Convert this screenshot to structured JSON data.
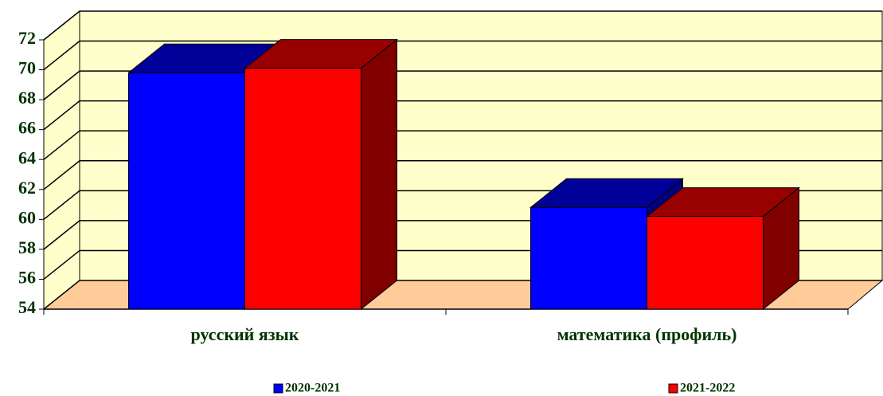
{
  "chart_data": {
    "type": "bar3d",
    "categories": [
      "русский язык",
      "математика (профиль)"
    ],
    "series": [
      {
        "name": "2020-2021",
        "color": "#0000ff",
        "values": [
          69.8,
          60.8
        ]
      },
      {
        "name": "2021-2022",
        "color": "#ff0000",
        "values": [
          70.1,
          60.2
        ]
      }
    ],
    "ylim": [
      54,
      72
    ],
    "yticks": [
      54,
      56,
      58,
      60,
      62,
      64,
      66,
      68,
      70,
      72
    ],
    "grid": true
  }
}
